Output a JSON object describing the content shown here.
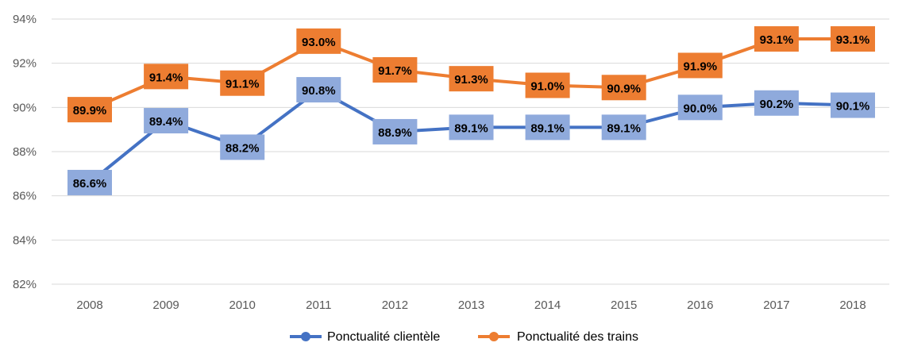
{
  "chart_data": {
    "type": "line",
    "title": "",
    "xlabel": "",
    "ylabel": "",
    "categories": [
      "2008",
      "2009",
      "2010",
      "2011",
      "2012",
      "2013",
      "2014",
      "2015",
      "2016",
      "2017",
      "2018"
    ],
    "ylim": [
      82,
      94
    ],
    "yticks": [
      82,
      84,
      86,
      88,
      90,
      92,
      94
    ],
    "ytick_labels": [
      "82%",
      "84%",
      "86%",
      "88%",
      "90%",
      "92%",
      "94%"
    ],
    "grid": true,
    "legend_position": "bottom",
    "series": [
      {
        "name": "Ponctualité clientèle",
        "color": "#4472C4",
        "label_bg": "#8FAADC",
        "values": [
          86.6,
          89.4,
          88.2,
          90.8,
          88.9,
          89.1,
          89.1,
          89.1,
          90.0,
          90.2,
          90.1
        ],
        "labels": [
          "86.6%",
          "89.4%",
          "88.2%",
          "90.8%",
          "88.9%",
          "89.1%",
          "89.1%",
          "89.1%",
          "90.0%",
          "90.2%",
          "90.1%"
        ]
      },
      {
        "name": "Ponctualité des trains",
        "color": "#ED7D31",
        "label_bg": "#ED7D31",
        "values": [
          89.9,
          91.4,
          91.1,
          93.0,
          91.7,
          91.3,
          91.0,
          90.9,
          91.9,
          93.1,
          93.1
        ],
        "labels": [
          "89.9%",
          "91.4%",
          "91.1%",
          "93.0%",
          "91.7%",
          "91.3%",
          "91.0%",
          "90.9%",
          "91.9%",
          "93.1%",
          "93.1%"
        ]
      }
    ]
  }
}
